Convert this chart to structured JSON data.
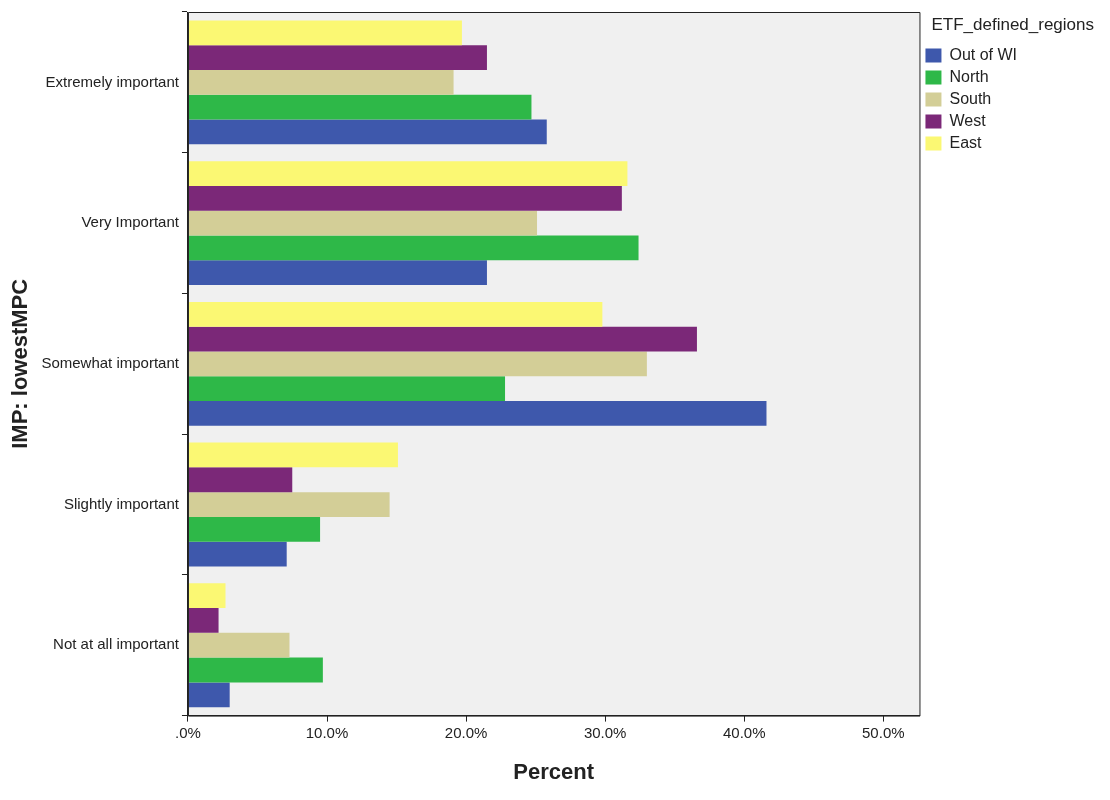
{
  "chart_data": {
    "type": "bar",
    "orientation": "horizontal",
    "xlabel": "Percent",
    "ylabel": "IMP: lowestMPC",
    "legend_title": "ETF_defined_regions",
    "legend": "top right",
    "grid": false,
    "categories": [
      "Extremely important",
      "Very Important",
      "Somewhat important",
      "Slightly important",
      "Not at all important"
    ],
    "xlim": [
      0,
      52.6
    ],
    "xticks": [
      {
        "value": 0,
        "label": ".0%"
      },
      {
        "value": 10,
        "label": "10.0%"
      },
      {
        "value": 20,
        "label": "20.0%"
      },
      {
        "value": 30,
        "label": "30.0%"
      },
      {
        "value": 40,
        "label": "40.0%"
      },
      {
        "value": 50,
        "label": "50.0%"
      }
    ],
    "series": [
      {
        "name": "Out of WI",
        "color": "#3e58ac",
        "values": [
          25.8,
          21.5,
          41.6,
          7.1,
          3.0
        ]
      },
      {
        "name": "North",
        "color": "#2eb848",
        "values": [
          24.7,
          32.4,
          22.8,
          9.5,
          9.7
        ]
      },
      {
        "name": "South",
        "color": "#d3ce97",
        "values": [
          19.1,
          25.1,
          33.0,
          14.5,
          7.3
        ]
      },
      {
        "name": "West",
        "color": "#7b2878",
        "values": [
          21.5,
          31.2,
          36.6,
          7.5,
          2.2
        ]
      },
      {
        "name": "East",
        "color": "#fbf873",
        "values": [
          19.7,
          31.6,
          29.8,
          15.1,
          2.7
        ]
      }
    ]
  }
}
